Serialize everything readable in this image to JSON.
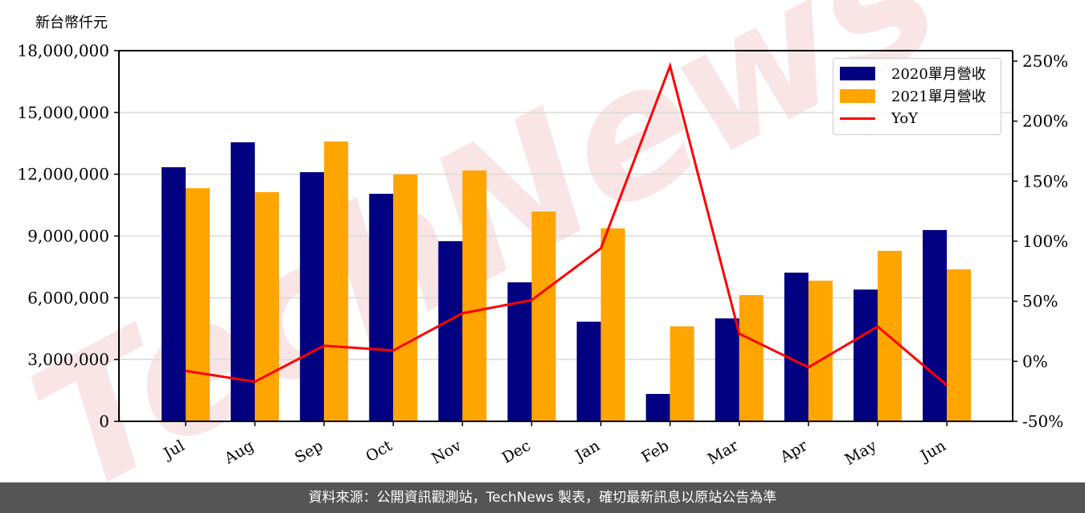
{
  "unit_label": "新台幣仟元",
  "footer": "資料來源：公開資訊觀測站，TechNews 製表，確切最新訊息以原站公告為準",
  "watermark": "TechNews",
  "legend": {
    "items": [
      {
        "label": "2020單月營收",
        "color": "#000080",
        "kind": "bar"
      },
      {
        "label": "2021單月營收",
        "color": "#FFA500",
        "kind": "bar"
      },
      {
        "label": "YoY",
        "color": "#FF0000",
        "kind": "line"
      }
    ]
  },
  "axes": {
    "left_ticks": [
      "0",
      "3,000,000",
      "6,000,000",
      "9,000,000",
      "12,000,000",
      "15,000,000",
      "18,000,000"
    ],
    "right_ticks": [
      "-50%",
      "0%",
      "50%",
      "100%",
      "150%",
      "200%",
      "250%"
    ]
  },
  "chart_data": {
    "type": "bar",
    "title": "",
    "xlabel": "",
    "ylabel": "新台幣仟元",
    "y2label": "YoY",
    "categories": [
      "Jul",
      "Aug",
      "Sep",
      "Oct",
      "Nov",
      "Dec",
      "Jan",
      "Feb",
      "Mar",
      "Apr",
      "May",
      "Jun"
    ],
    "series": [
      {
        "name": "2020單月營收",
        "type": "bar",
        "axis": "left",
        "color": "#000080",
        "values": [
          12340000,
          13550000,
          12100000,
          11050000,
          8750000,
          6750000,
          4840000,
          1330000,
          5000000,
          7220000,
          6400000,
          9290000
        ]
      },
      {
        "name": "2021單月營收",
        "type": "bar",
        "axis": "left",
        "color": "#FFA500",
        "values": [
          11320000,
          11130000,
          13590000,
          11990000,
          12180000,
          10190000,
          9370000,
          4610000,
          6130000,
          6830000,
          8280000,
          7380000
        ]
      },
      {
        "name": "YoY",
        "type": "line",
        "axis": "right",
        "color": "#FF0000",
        "values": [
          -8,
          -17,
          13,
          9,
          40,
          51,
          94,
          246,
          23,
          -5,
          29,
          -20
        ]
      }
    ],
    "ylim": [
      0,
      18000000
    ],
    "y2lim": [
      -50,
      250
    ],
    "yticks": [
      0,
      3000000,
      6000000,
      9000000,
      12000000,
      15000000,
      18000000
    ],
    "y2ticks": [
      -50,
      0,
      50,
      100,
      150,
      200,
      250
    ],
    "grid": true,
    "legend_position": "upper right"
  }
}
